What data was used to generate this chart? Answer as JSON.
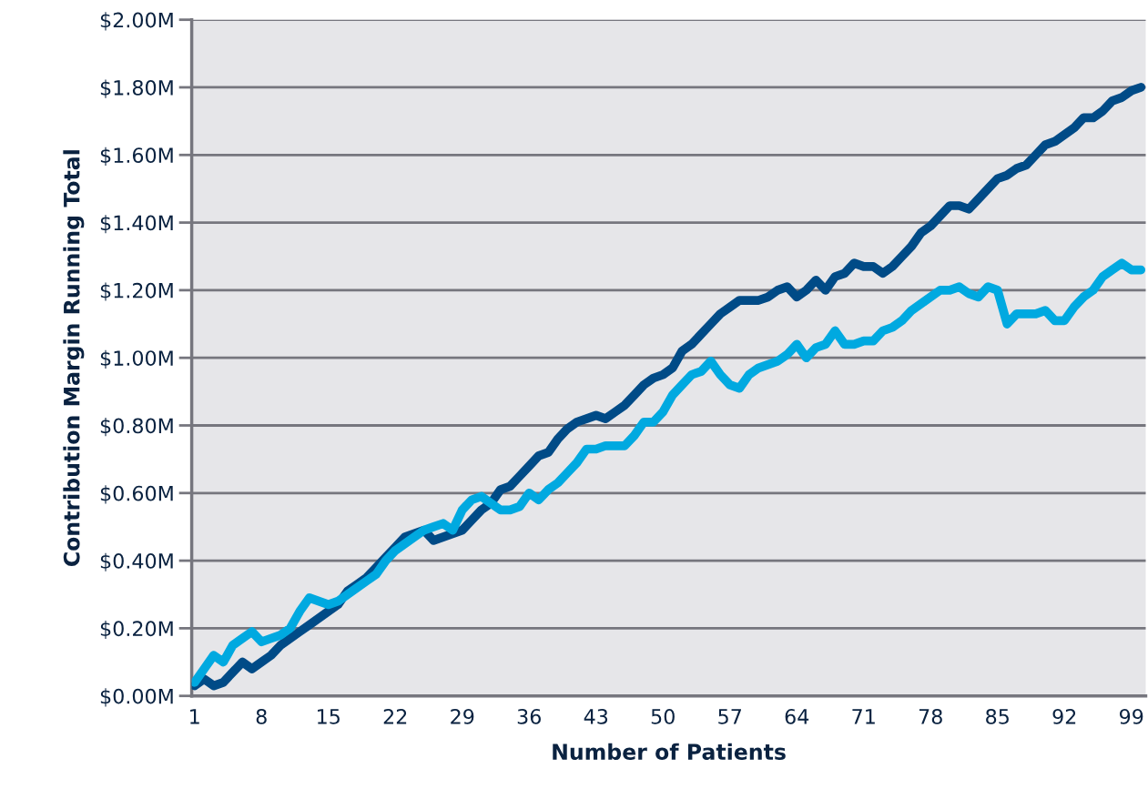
{
  "chart_data": {
    "type": "line",
    "xlabel": "Number of Patients",
    "ylabel": "Contribution Margin Running Total",
    "x": [
      1,
      2,
      3,
      4,
      5,
      6,
      7,
      8,
      9,
      10,
      11,
      12,
      13,
      14,
      15,
      16,
      17,
      18,
      19,
      20,
      21,
      22,
      23,
      24,
      25,
      26,
      27,
      28,
      29,
      30,
      31,
      32,
      33,
      34,
      35,
      36,
      37,
      38,
      39,
      40,
      41,
      42,
      43,
      44,
      45,
      46,
      47,
      48,
      49,
      50,
      51,
      52,
      53,
      54,
      55,
      56,
      57,
      58,
      59,
      60,
      61,
      62,
      63,
      64,
      65,
      66,
      67,
      68,
      69,
      70,
      71,
      72,
      73,
      74,
      75,
      76,
      77,
      78,
      79,
      80,
      81,
      82,
      83,
      84,
      85,
      86,
      87,
      88,
      89,
      90,
      91,
      92,
      93,
      94,
      95,
      96,
      97,
      98,
      99,
      100
    ],
    "series": [
      {
        "color": "#004b87",
        "values": [
          0.03,
          0.05,
          0.03,
          0.04,
          0.07,
          0.1,
          0.08,
          0.1,
          0.12,
          0.15,
          0.17,
          0.19,
          0.21,
          0.23,
          0.25,
          0.27,
          0.31,
          0.33,
          0.35,
          0.38,
          0.41,
          0.44,
          0.47,
          0.48,
          0.49,
          0.46,
          0.47,
          0.48,
          0.49,
          0.52,
          0.55,
          0.57,
          0.61,
          0.62,
          0.65,
          0.68,
          0.71,
          0.72,
          0.76,
          0.79,
          0.81,
          0.82,
          0.83,
          0.82,
          0.84,
          0.86,
          0.89,
          0.92,
          0.94,
          0.95,
          0.97,
          1.02,
          1.04,
          1.07,
          1.1,
          1.13,
          1.15,
          1.17,
          1.17,
          1.17,
          1.18,
          1.2,
          1.21,
          1.18,
          1.2,
          1.23,
          1.2,
          1.24,
          1.25,
          1.28,
          1.27,
          1.27,
          1.25,
          1.27,
          1.3,
          1.33,
          1.37,
          1.39,
          1.42,
          1.45,
          1.45,
          1.44,
          1.47,
          1.5,
          1.53,
          1.54,
          1.56,
          1.57,
          1.6,
          1.63,
          1.64,
          1.66,
          1.68,
          1.71,
          1.71,
          1.73,
          1.76,
          1.77,
          1.79,
          1.8
        ]
      },
      {
        "color": "#00a9e0",
        "values": [
          0.04,
          0.08,
          0.12,
          0.1,
          0.15,
          0.17,
          0.19,
          0.16,
          0.17,
          0.18,
          0.2,
          0.25,
          0.29,
          0.28,
          0.27,
          0.28,
          0.3,
          0.32,
          0.34,
          0.36,
          0.4,
          0.43,
          0.45,
          0.47,
          0.49,
          0.5,
          0.51,
          0.49,
          0.55,
          0.58,
          0.59,
          0.57,
          0.55,
          0.55,
          0.56,
          0.6,
          0.58,
          0.61,
          0.63,
          0.66,
          0.69,
          0.73,
          0.73,
          0.74,
          0.74,
          0.74,
          0.77,
          0.81,
          0.81,
          0.84,
          0.89,
          0.92,
          0.95,
          0.96,
          0.99,
          0.95,
          0.92,
          0.91,
          0.95,
          0.97,
          0.98,
          0.99,
          1.01,
          1.04,
          1.0,
          1.03,
          1.04,
          1.08,
          1.04,
          1.04,
          1.05,
          1.05,
          1.08,
          1.09,
          1.11,
          1.14,
          1.16,
          1.18,
          1.2,
          1.2,
          1.21,
          1.19,
          1.18,
          1.21,
          1.2,
          1.1,
          1.13,
          1.13,
          1.13,
          1.14,
          1.11,
          1.11,
          1.15,
          1.18,
          1.2,
          1.24,
          1.26,
          1.28,
          1.26,
          1.26
        ]
      }
    ],
    "xlim": [
      0.7,
      100.5
    ],
    "xticks": [
      1,
      8,
      15,
      22,
      29,
      36,
      43,
      50,
      57,
      64,
      71,
      78,
      85,
      92,
      99
    ],
    "ylim": [
      0,
      2.0
    ],
    "yticks": [
      {
        "value": 0,
        "label": "$0.00M"
      },
      {
        "value": 0.2,
        "label": "$0.20M"
      },
      {
        "value": 0.4,
        "label": "$0.40M"
      },
      {
        "value": 0.6,
        "label": "$0.60M"
      },
      {
        "value": 0.8,
        "label": "$0.80M"
      },
      {
        "value": 1.0,
        "label": "$1.00M"
      },
      {
        "value": 1.2,
        "label": "$1.20M"
      },
      {
        "value": 1.4,
        "label": "$1.40M"
      },
      {
        "value": 1.6,
        "label": "$1.60M"
      },
      {
        "value": 1.8,
        "label": "$1.80M"
      },
      {
        "value": 2.0,
        "label": "$2.00M"
      }
    ],
    "grid": "y",
    "line_style": "solid",
    "marker": "none"
  }
}
